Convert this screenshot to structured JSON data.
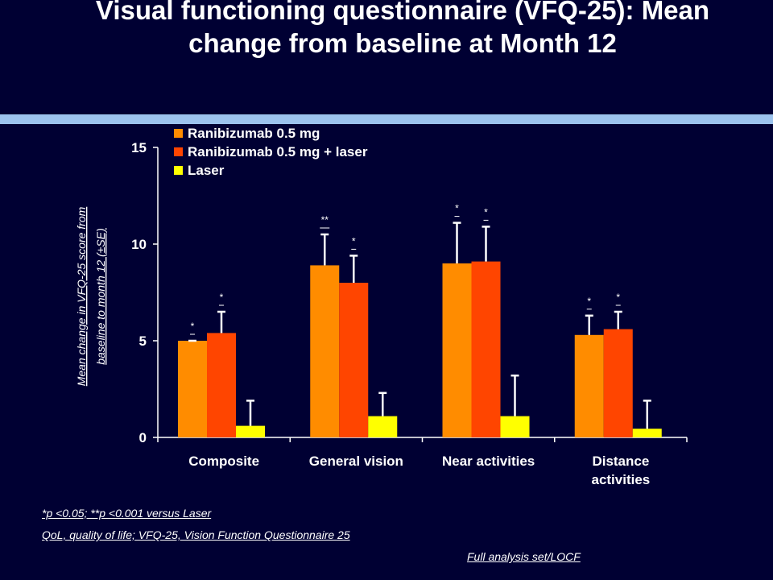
{
  "slide": {
    "title_line1": "Visual functioning questionnaire (VFQ-25): Mean",
    "title_line2": "change from baseline at Month 12",
    "footnote_significance": "*p <0.05; **p <0.001 versus Laser",
    "footnote_abbreviations": "QoL, quality of life; VFQ-25, Vision Function Questionnaire 25",
    "footnote_analysis": "Full analysis set/LOCF",
    "accent_bar_color": "#9cc3ee",
    "background_color": "#000033"
  },
  "chart_data": {
    "type": "bar",
    "title": "",
    "xlabel": "",
    "ylabel_line1": "Mean change in VFQ-25 score from",
    "ylabel_line2": "baseline to month 12 (±SE)",
    "ylim": [
      0,
      15
    ],
    "yticks": [
      0,
      5,
      10,
      15
    ],
    "grid": false,
    "legend_position": "top-left",
    "categories": [
      [
        "Composite"
      ],
      [
        "General vision"
      ],
      [
        "Near activities"
      ],
      [
        "Distance",
        "activities"
      ]
    ],
    "series": [
      {
        "name": "Ranibizumab 0.5 mg",
        "color": "#ff8c00",
        "values": [
          5.0,
          8.9,
          9.0,
          5.3
        ],
        "error_upper": [
          5.0,
          10.5,
          11.1,
          6.3
        ],
        "significance": [
          "*",
          "**",
          "*",
          "*"
        ]
      },
      {
        "name": "Ranibizumab 0.5 mg + laser",
        "color": "#ff4500",
        "values": [
          5.4,
          8.0,
          9.1,
          5.6
        ],
        "error_upper": [
          6.5,
          9.4,
          10.9,
          6.5
        ],
        "significance": [
          "*",
          "*",
          "*",
          "*"
        ]
      },
      {
        "name": "Laser",
        "color": "#ffff00",
        "values": [
          0.6,
          1.1,
          1.1,
          0.45
        ],
        "error_upper": [
          1.9,
          2.3,
          3.2,
          1.9
        ],
        "significance": [
          "",
          "",
          "",
          ""
        ]
      }
    ]
  }
}
